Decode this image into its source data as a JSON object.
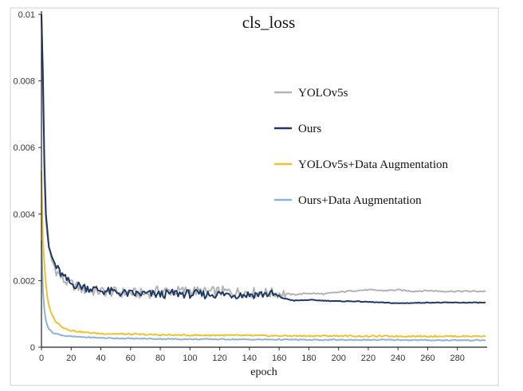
{
  "chart_data": {
    "type": "line",
    "title": "cls_loss",
    "xlabel": "epoch",
    "ylabel": "",
    "xlim": [
      0,
      300
    ],
    "ylim": [
      0,
      0.01
    ],
    "xticks": [
      0,
      20,
      40,
      60,
      80,
      100,
      120,
      140,
      160,
      180,
      200,
      220,
      240,
      260,
      280
    ],
    "yticks": [
      0,
      0.002,
      0.004,
      0.006,
      0.008,
      0.01
    ],
    "ytick_labels": [
      "0",
      "0.002",
      "0.004",
      "0.006",
      "0.008",
      "0.01"
    ],
    "grid": false,
    "legend_position": "center-right",
    "series": [
      {
        "name": "YOLOv5s",
        "color": "#b3b3b3",
        "x": [
          0,
          1,
          2,
          3,
          5,
          7,
          10,
          15,
          20,
          30,
          40,
          50,
          60,
          70,
          80,
          90,
          100,
          110,
          120,
          130,
          140,
          150,
          160,
          170,
          180,
          190,
          200,
          210,
          220,
          230,
          240,
          250,
          260,
          270,
          280,
          299
        ],
        "y": [
          0.01,
          0.0075,
          0.005,
          0.0038,
          0.0029,
          0.0026,
          0.0023,
          0.002,
          0.0019,
          0.0017,
          0.00168,
          0.00165,
          0.00163,
          0.0016,
          0.0017,
          0.00168,
          0.0017,
          0.00165,
          0.00168,
          0.00165,
          0.00165,
          0.00163,
          0.00162,
          0.00158,
          0.00162,
          0.0016,
          0.00165,
          0.0017,
          0.00172,
          0.0017,
          0.00172,
          0.00168,
          0.0017,
          0.00168,
          0.00168,
          0.00168
        ]
      },
      {
        "name": "Ours",
        "color": "#1f3864",
        "x": [
          0,
          1,
          2,
          3,
          5,
          7,
          10,
          15,
          20,
          30,
          40,
          50,
          60,
          70,
          80,
          90,
          100,
          110,
          120,
          130,
          140,
          150,
          155,
          160,
          170,
          180,
          190,
          200,
          210,
          220,
          230,
          240,
          250,
          260,
          270,
          280,
          299
        ],
        "y": [
          0.01,
          0.0082,
          0.0055,
          0.004,
          0.003,
          0.0027,
          0.0024,
          0.0021,
          0.0019,
          0.0018,
          0.0017,
          0.00165,
          0.0016,
          0.0016,
          0.00158,
          0.00162,
          0.0016,
          0.00158,
          0.0016,
          0.00158,
          0.00158,
          0.0016,
          0.0016,
          0.0015,
          0.0014,
          0.00142,
          0.0014,
          0.00138,
          0.00138,
          0.00136,
          0.00134,
          0.00132,
          0.00133,
          0.00134,
          0.00134,
          0.00134,
          0.00134
        ]
      },
      {
        "name": "YOLOv5s+Data Augmentation",
        "color": "#f2c12e",
        "x": [
          0,
          1,
          2,
          3,
          4,
          5,
          6,
          8,
          10,
          15,
          20,
          30,
          40,
          60,
          80,
          100,
          120,
          140,
          160,
          180,
          200,
          220,
          240,
          260,
          280,
          299
        ],
        "y": [
          0.0053,
          0.0032,
          0.0025,
          0.0019,
          0.0015,
          0.00125,
          0.0011,
          0.0009,
          0.00075,
          0.00058,
          0.0005,
          0.00044,
          0.00041,
          0.00039,
          0.00037,
          0.00036,
          0.00036,
          0.00035,
          0.00034,
          0.00034,
          0.00034,
          0.00033,
          0.00033,
          0.00033,
          0.00033,
          0.00033
        ]
      },
      {
        "name": "Ours+Data Augmentation",
        "color": "#8db3d9",
        "x": [
          0,
          1,
          2,
          3,
          4,
          5,
          6,
          8,
          10,
          15,
          20,
          30,
          40,
          60,
          80,
          100,
          120,
          140,
          160,
          180,
          200,
          220,
          240,
          260,
          280,
          299
        ],
        "y": [
          0.0032,
          0.0017,
          0.0011,
          0.0008,
          0.00065,
          0.00055,
          0.0005,
          0.00043,
          0.0004,
          0.00035,
          0.00032,
          0.0003,
          0.00028,
          0.00026,
          0.00025,
          0.00024,
          0.00024,
          0.00023,
          0.00023,
          0.00022,
          0.00022,
          0.00022,
          0.00022,
          0.00021,
          0.00021,
          0.00021
        ]
      }
    ]
  }
}
